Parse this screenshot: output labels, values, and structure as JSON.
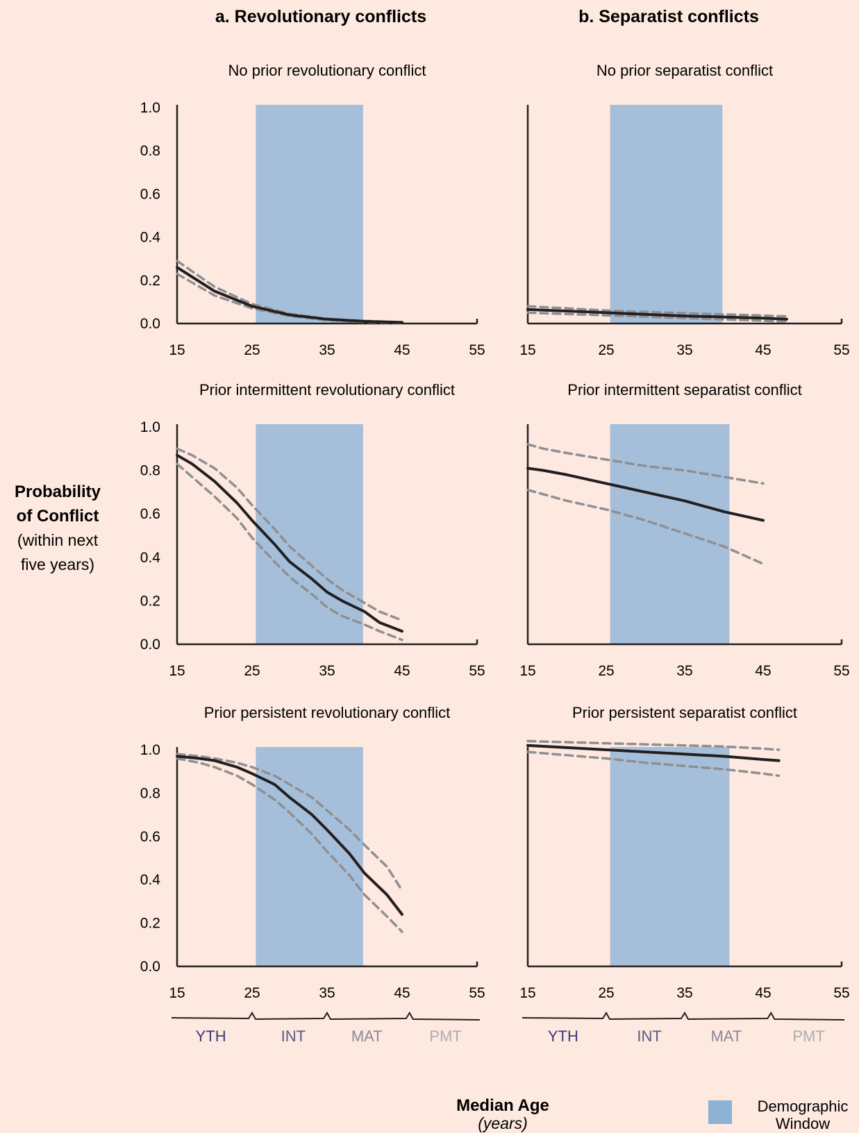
{
  "figure": {
    "column_titles": [
      "a.  Revolutionary conflicts",
      "b.  Separatist conflicts"
    ],
    "y_label": [
      "Probability",
      "of Conflict",
      "(within next",
      "five years)"
    ],
    "x_label": "Median Age",
    "x_label_sub": "(years)",
    "legend_label": [
      "Demographic",
      "Window"
    ],
    "stage_labels": [
      {
        "text": "YTH",
        "color": "#3d3a7a"
      },
      {
        "text": "INT",
        "color": "#5b5a84"
      },
      {
        "text": "MAT",
        "color": "#8a8899"
      },
      {
        "text": "PMT",
        "color": "#aeacb0"
      }
    ],
    "colors": {
      "background": "#fde9df",
      "window": "#a5bfda",
      "legend_swatch": "#8eb1d6",
      "estimate": "#231f20",
      "ci": "#8f8f93",
      "axis": "#231f20"
    }
  },
  "chart_data": [
    {
      "type": "line",
      "column": 0,
      "row": 0,
      "title": "No prior revolutionary conflict",
      "xlim": [
        15,
        55
      ],
      "ylim": [
        0,
        1
      ],
      "xticks": [
        "15",
        "25",
        "35",
        "45",
        "55"
      ],
      "yticks": [
        "0.0",
        "0.2",
        "0.4",
        "0.6",
        "0.8",
        "1.0"
      ],
      "window": [
        25.5,
        39.8
      ],
      "x": [
        15,
        20,
        25,
        30,
        35,
        40,
        45
      ],
      "series": [
        {
          "kind": "estimate",
          "values": [
            0.26,
            0.15,
            0.08,
            0.04,
            0.02,
            0.01,
            0.005
          ]
        },
        {
          "kind": "upper",
          "values": [
            0.29,
            0.17,
            0.09,
            0.045,
            0.022,
            0.012,
            0.006
          ]
        },
        {
          "kind": "lower",
          "values": [
            0.23,
            0.13,
            0.07,
            0.035,
            0.015,
            0.007,
            0.003
          ]
        }
      ]
    },
    {
      "type": "line",
      "column": 1,
      "row": 0,
      "title": "No prior separatist conflict",
      "xlim": [
        15,
        55
      ],
      "ylim": [
        0,
        1
      ],
      "xticks": [
        "15",
        "25",
        "35",
        "45",
        "55"
      ],
      "yticks": [],
      "window": [
        25.5,
        39.8
      ],
      "x": [
        15,
        25,
        35,
        45,
        48
      ],
      "series": [
        {
          "kind": "estimate",
          "values": [
            0.065,
            0.05,
            0.035,
            0.025,
            0.02
          ]
        },
        {
          "kind": "upper",
          "values": [
            0.08,
            0.06,
            0.048,
            0.037,
            0.033
          ]
        },
        {
          "kind": "lower",
          "values": [
            0.05,
            0.038,
            0.025,
            0.013,
            0.008
          ]
        }
      ]
    },
    {
      "type": "line",
      "column": 0,
      "row": 1,
      "title": "Prior intermittent revolutionary conflict",
      "xlim": [
        15,
        55
      ],
      "ylim": [
        0,
        1
      ],
      "xticks": [
        "15",
        "25",
        "35",
        "45",
        "55"
      ],
      "yticks": [
        "0.0",
        "0.2",
        "0.4",
        "0.6",
        "0.8",
        "1.0"
      ],
      "window": [
        25.5,
        39.8
      ],
      "x": [
        15,
        17,
        20,
        23,
        25,
        28,
        30,
        33,
        35,
        37,
        40,
        42,
        45
      ],
      "series": [
        {
          "kind": "estimate",
          "values": [
            0.87,
            0.83,
            0.75,
            0.65,
            0.57,
            0.46,
            0.38,
            0.3,
            0.24,
            0.2,
            0.15,
            0.1,
            0.06
          ]
        },
        {
          "kind": "upper",
          "values": [
            0.9,
            0.87,
            0.81,
            0.72,
            0.64,
            0.53,
            0.45,
            0.36,
            0.3,
            0.25,
            0.19,
            0.15,
            0.11
          ]
        },
        {
          "kind": "lower",
          "values": [
            0.83,
            0.77,
            0.68,
            0.58,
            0.49,
            0.38,
            0.31,
            0.23,
            0.17,
            0.13,
            0.09,
            0.06,
            0.02
          ]
        }
      ]
    },
    {
      "type": "line",
      "column": 1,
      "row": 1,
      "title": "Prior intermittent separatist conflict",
      "xlim": [
        15,
        55
      ],
      "ylim": [
        0,
        1
      ],
      "xticks": [
        "15",
        "25",
        "35",
        "45",
        "55"
      ],
      "yticks": [],
      "window": [
        25.5,
        40.7
      ],
      "x": [
        15,
        17,
        20,
        25,
        30,
        35,
        40,
        45
      ],
      "series": [
        {
          "kind": "estimate",
          "values": [
            0.81,
            0.8,
            0.78,
            0.74,
            0.7,
            0.66,
            0.61,
            0.57
          ]
        },
        {
          "kind": "upper",
          "values": [
            0.92,
            0.9,
            0.88,
            0.85,
            0.82,
            0.8,
            0.77,
            0.74
          ]
        },
        {
          "kind": "lower",
          "values": [
            0.71,
            0.69,
            0.66,
            0.62,
            0.57,
            0.51,
            0.45,
            0.37
          ]
        }
      ]
    },
    {
      "type": "line",
      "column": 0,
      "row": 2,
      "title": "Prior persistent revolutionary conflict",
      "xlim": [
        15,
        55
      ],
      "ylim": [
        0,
        1
      ],
      "xticks": [
        "15",
        "25",
        "35",
        "45",
        "55"
      ],
      "yticks": [
        "0.0",
        "0.2",
        "0.4",
        "0.6",
        "0.8",
        "1.0"
      ],
      "window": [
        25.5,
        39.8
      ],
      "x": [
        15,
        18,
        20,
        23,
        25,
        28,
        30,
        33,
        35,
        38,
        40,
        43,
        45
      ],
      "series": [
        {
          "kind": "estimate",
          "values": [
            0.97,
            0.96,
            0.95,
            0.92,
            0.89,
            0.84,
            0.78,
            0.7,
            0.63,
            0.52,
            0.43,
            0.33,
            0.24
          ]
        },
        {
          "kind": "upper",
          "values": [
            0.98,
            0.97,
            0.96,
            0.94,
            0.92,
            0.88,
            0.84,
            0.78,
            0.72,
            0.63,
            0.56,
            0.46,
            0.35
          ]
        },
        {
          "kind": "lower",
          "values": [
            0.96,
            0.94,
            0.92,
            0.88,
            0.84,
            0.77,
            0.71,
            0.61,
            0.53,
            0.42,
            0.33,
            0.23,
            0.16
          ]
        }
      ]
    },
    {
      "type": "line",
      "column": 1,
      "row": 2,
      "title": "Prior persistent separatist conflict",
      "xlim": [
        15,
        55
      ],
      "ylim": [
        0,
        1
      ],
      "xticks": [
        "15",
        "25",
        "35",
        "45",
        "55"
      ],
      "yticks": [],
      "window": [
        25.5,
        40.7
      ],
      "x": [
        15,
        20,
        25,
        30,
        35,
        40,
        45,
        47
      ],
      "series": [
        {
          "kind": "estimate",
          "values": [
            1.02,
            1.01,
            1.0,
            0.99,
            0.98,
            0.97,
            0.955,
            0.95
          ]
        },
        {
          "kind": "upper",
          "values": [
            1.04,
            1.035,
            1.03,
            1.025,
            1.02,
            1.015,
            1.005,
            1.0
          ]
        },
        {
          "kind": "lower",
          "values": [
            0.99,
            0.975,
            0.96,
            0.94,
            0.925,
            0.91,
            0.89,
            0.88
          ]
        }
      ]
    }
  ]
}
